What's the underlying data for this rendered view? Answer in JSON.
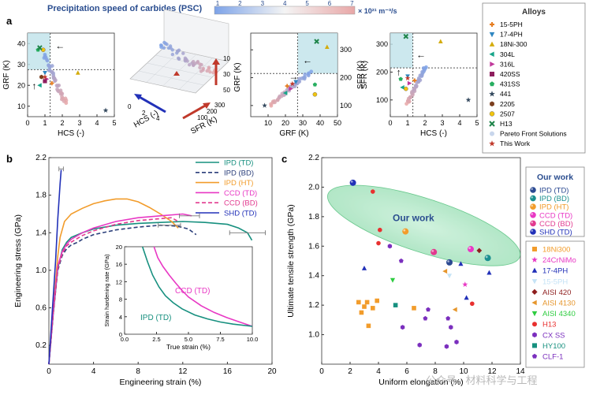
{
  "panel_labels": {
    "a": "a",
    "b": "b",
    "c": "c"
  },
  "colorbar": {
    "title": "Precipitation speed of carbides (PSC)",
    "unit": "× 10²¹ m⁻³/s",
    "ticks": [
      "1",
      "2",
      "3",
      "4",
      "5",
      "6",
      "7"
    ],
    "colors": [
      "#7da3e8",
      "#e8a7a7"
    ]
  },
  "legend_a": {
    "title": "Alloys",
    "items": [
      {
        "label": "15-5PH",
        "marker": "plus",
        "color": "#e67e22"
      },
      {
        "label": "17-4PH",
        "marker": "tri-down",
        "color": "#2e86c1"
      },
      {
        "label": "18Ni-300",
        "marker": "tri-up",
        "color": "#d4ac0d"
      },
      {
        "label": "304L",
        "marker": "tri-left",
        "color": "#17a589"
      },
      {
        "label": "316L",
        "marker": "tri-right",
        "color": "#c0399b"
      },
      {
        "label": "420SS",
        "marker": "square",
        "color": "#8e1e5e"
      },
      {
        "label": "431SS",
        "marker": "pentagon",
        "color": "#27ae60"
      },
      {
        "label": "441",
        "marker": "star",
        "color": "#34495e"
      },
      {
        "label": "2205",
        "marker": "hexagon",
        "color": "#7b3f1e"
      },
      {
        "label": "2507",
        "marker": "circle",
        "color": "#f1c40f"
      },
      {
        "label": "H13",
        "marker": "x",
        "color": "#1e8449"
      },
      {
        "label": "Pareto Front Solutions",
        "marker": "dot",
        "color": "#c8d6ec"
      },
      {
        "label": "This Work",
        "marker": "star",
        "color": "#c0392b"
      }
    ]
  },
  "chart_data": [
    {
      "id": "a1",
      "type": "scatter",
      "xlabel": "HCS (-)",
      "ylabel": "GRF (K)",
      "xticks": [
        "0",
        "1",
        "2",
        "3",
        "4",
        "5"
      ],
      "yticks": [
        "10",
        "20",
        "30",
        "40"
      ],
      "xlim": [
        0,
        5
      ],
      "ylim": [
        5,
        45
      ]
    },
    {
      "id": "a2",
      "type": "scatter-3d",
      "xlabel": "HCS (-)",
      "ylabel": "SFR (K)",
      "zlabel": "GRF (K)",
      "xticks": [
        "0",
        "2",
        "4"
      ],
      "yticks": [
        "100",
        "200",
        "300"
      ],
      "zticks": [
        "10",
        "30",
        "50"
      ]
    },
    {
      "id": "a3",
      "type": "scatter",
      "xlabel": "GRF (K)",
      "ylabel": "SFR (K)",
      "xticks": [
        "10",
        "20",
        "30",
        "40",
        "50"
      ],
      "yticks": [
        "100",
        "200",
        "300"
      ],
      "xlim": [
        0,
        50
      ],
      "ylim": [
        60,
        360
      ]
    },
    {
      "id": "a4",
      "type": "scatter",
      "xlabel": "HCS (-)",
      "ylabel": "SFR (K)",
      "xticks": [
        "0",
        "1",
        "2",
        "3",
        "4",
        "5"
      ],
      "yticks": [
        "100",
        "200",
        "300"
      ],
      "xlim": [
        0,
        5
      ],
      "ylim": [
        40,
        340
      ]
    },
    {
      "id": "b",
      "type": "line",
      "xlabel": "Engineering strain (%)",
      "ylabel": "Engineering stress (GPa)",
      "xlim": [
        0,
        20
      ],
      "ylim": [
        0,
        2.2
      ],
      "xticks": [
        "0",
        "4",
        "8",
        "12",
        "16",
        "20"
      ],
      "yticks": [
        "0.2",
        "0.6",
        "1.0",
        "1.4",
        "1.8",
        "2.2"
      ],
      "series": [
        {
          "name": "IPD (TD)",
          "color": "#17907f",
          "dash": "solid",
          "x": [
            0,
            0.4,
            0.8,
            1.2,
            1.6,
            2.0,
            3,
            4,
            6,
            8,
            10,
            12,
            14,
            16,
            17,
            17.8,
            18.2
          ],
          "y": [
            0,
            0.55,
            1.02,
            1.22,
            1.3,
            1.35,
            1.4,
            1.44,
            1.48,
            1.5,
            1.51,
            1.52,
            1.51,
            1.49,
            1.45,
            1.4,
            1.32
          ]
        },
        {
          "name": "IPD (BD)",
          "color": "#2b3f7a",
          "dash": "dashed",
          "x": [
            0,
            0.4,
            0.8,
            1.2,
            1.6,
            2.0,
            2.6,
            3,
            4,
            6,
            8,
            9,
            10,
            11.5,
            12.5,
            13.2
          ],
          "y": [
            0,
            0.55,
            1.0,
            1.16,
            1.23,
            1.27,
            1.3,
            1.33,
            1.38,
            1.43,
            1.46,
            1.47,
            1.48,
            1.47,
            1.44,
            1.38
          ]
        },
        {
          "name": "IPD (HT)",
          "color": "#f29c2b",
          "dash": "solid",
          "x": [
            0,
            0.4,
            0.8,
            1.0,
            1.4,
            2,
            3,
            4,
            5,
            6,
            7,
            8,
            9,
            10,
            11,
            11.6
          ],
          "y": [
            0,
            0.6,
            1.15,
            1.35,
            1.52,
            1.6,
            1.66,
            1.71,
            1.74,
            1.76,
            1.76,
            1.73,
            1.67,
            1.6,
            1.52,
            1.45
          ]
        },
        {
          "name": "CCD (TD)",
          "color": "#e838c4",
          "dash": "solid",
          "x": [
            0,
            0.4,
            0.8,
            1.2,
            1.6,
            2.0,
            3,
            4,
            6,
            8,
            10,
            12,
            12.8
          ],
          "y": [
            0,
            0.58,
            1.05,
            1.2,
            1.28,
            1.33,
            1.4,
            1.45,
            1.52,
            1.56,
            1.58,
            1.6,
            1.58
          ]
        },
        {
          "name": "CCD (BD)",
          "color": "#e23a8f",
          "dash": "dashed",
          "x": [
            0,
            0.4,
            0.8,
            1.2,
            1.6,
            2.0,
            3,
            4,
            6,
            8,
            10,
            11,
            11.6
          ],
          "y": [
            0,
            0.56,
            1.02,
            1.18,
            1.26,
            1.3,
            1.37,
            1.42,
            1.49,
            1.53,
            1.55,
            1.56,
            1.52
          ]
        },
        {
          "name": "SHD (TD)",
          "color": "#2231b8",
          "dash": "solid",
          "x": [
            0,
            0.3,
            0.6,
            0.8,
            1.0,
            1.1
          ],
          "y": [
            0,
            0.55,
            1.1,
            1.55,
            1.92,
            2.07
          ]
        }
      ],
      "error_bars": [
        {
          "x": 1.1,
          "y": 2.08,
          "err": 0.2,
          "color": "#2231b8"
        },
        {
          "x": 17.8,
          "y": 1.4,
          "err": 1.6,
          "color": "#17907f"
        },
        {
          "x": 12.6,
          "y": 1.58,
          "err": 0.9,
          "color": "#e838c4"
        },
        {
          "x": 10.8,
          "y": 1.48,
          "err": 1.0,
          "color": "#2b3f7a"
        }
      ],
      "inset": {
        "xlabel": "True strain (%)",
        "ylabel": "Strain hardening rate (GPa)",
        "xlim": [
          0,
          10
        ],
        "ylim": [
          0,
          20
        ],
        "xticks": [
          "0.0",
          "2.5",
          "5.0",
          "7.5",
          "10.0"
        ],
        "yticks": [
          "0",
          "4",
          "8",
          "12",
          "16",
          "20"
        ],
        "series": [
          {
            "name": "CCD (TD)",
            "color": "#e838c4",
            "x": [
              2.3,
              2.6,
              3,
              3.5,
              4,
              4.5,
              5,
              6,
              7,
              8,
              9,
              10
            ],
            "y": [
              20,
              17.5,
              15.5,
              13.5,
              11.7,
              10.0,
              8.5,
              6.5,
              5.0,
              3.8,
              2.8,
              1.8
            ]
          },
          {
            "name": "IPD (TD)",
            "color": "#17907f",
            "x": [
              1.4,
              1.8,
              2.2,
              2.7,
              3.2,
              3.8,
              4.5,
              5.5,
              6.5,
              7.5,
              8.5,
              10
            ],
            "y": [
              20,
              16.5,
              13.5,
              10.8,
              8.8,
              7.2,
              5.8,
              4.4,
              3.5,
              2.8,
              2.3,
              1.8
            ]
          }
        ]
      }
    },
    {
      "id": "c",
      "type": "scatter",
      "xlabel": "Uniform elongation (%)",
      "ylabel": "Ultimate tensile strength (GPa)",
      "xlim": [
        0,
        14
      ],
      "ylim": [
        0.8,
        2.2
      ],
      "xticks": [
        "0",
        "2",
        "4",
        "6",
        "8",
        "10",
        "12",
        "14"
      ],
      "yticks": [
        "1.0",
        "1.2",
        "1.4",
        "1.6",
        "1.8",
        "2.0",
        "2.2"
      ],
      "annotation": "Our work",
      "series": [
        {
          "name": "IPD (TD)",
          "group": "our",
          "marker": "ball",
          "color": "#2c4a92",
          "x": [
            9.0
          ],
          "y": [
            1.49
          ]
        },
        {
          "name": "IPD (BD)",
          "group": "our",
          "marker": "ball",
          "color": "#1a8f8f",
          "x": [
            11.7
          ],
          "y": [
            1.52
          ]
        },
        {
          "name": "IPD (HT)",
          "group": "our",
          "marker": "ball",
          "color": "#f29c2b",
          "x": [
            5.9
          ],
          "y": [
            1.7
          ]
        },
        {
          "name": "CCD (TD)",
          "group": "our",
          "marker": "ball",
          "color": "#e838c4",
          "x": [
            10.5
          ],
          "y": [
            1.58
          ]
        },
        {
          "name": "CCD (BD)",
          "group": "our",
          "marker": "ball",
          "color": "#e23a8f",
          "x": [
            7.9
          ],
          "y": [
            1.56
          ]
        },
        {
          "name": "SHD (TD)",
          "group": "our",
          "marker": "ball",
          "color": "#2231b8",
          "x": [
            2.2
          ],
          "y": [
            2.03
          ]
        },
        {
          "name": "18Ni300",
          "group": "ref",
          "marker": "square",
          "color": "#f29c2b",
          "x": [
            2.6,
            3.0,
            3.2,
            3.6,
            3.9,
            2.8,
            3.3,
            6.5
          ],
          "y": [
            1.22,
            1.19,
            1.22,
            1.18,
            1.23,
            1.15,
            1.06,
            1.18
          ]
        },
        {
          "name": "24CrNiMo",
          "group": "ref",
          "marker": "star",
          "color": "#e838c4",
          "x": [
            10.1
          ],
          "y": [
            1.34
          ]
        },
        {
          "name": "17-4PH",
          "group": "ref",
          "marker": "tri-up",
          "color": "#2231b8",
          "x": [
            3.0,
            9.8,
            10.2,
            11.8
          ],
          "y": [
            1.45,
            1.48,
            1.25,
            1.42
          ]
        },
        {
          "name": "15-5PH",
          "group": "ref",
          "marker": "tri-down",
          "color": "#c5e3f6",
          "x": [
            9.0
          ],
          "y": [
            1.4
          ]
        },
        {
          "name": "AISI 420",
          "group": "ref",
          "marker": "diamond",
          "color": "#8e1e1e",
          "x": [
            11.1
          ],
          "y": [
            1.57
          ]
        },
        {
          "name": "AISI 4130",
          "group": "ref",
          "marker": "tri-left",
          "color": "#e6962c",
          "x": [
            8.7,
            9.4
          ],
          "y": [
            1.43,
            1.17
          ]
        },
        {
          "name": "AISI 4340",
          "group": "ref",
          "marker": "tri-down",
          "color": "#2ecc40",
          "x": [
            5.0
          ],
          "y": [
            1.37
          ]
        },
        {
          "name": "H13",
          "group": "ref",
          "marker": "dot",
          "color": "#e8302f",
          "x": [
            3.6,
            4.1,
            4.0,
            10.6
          ],
          "y": [
            1.97,
            1.71,
            1.62,
            1.21
          ]
        },
        {
          "name": "CX SS",
          "group": "ref",
          "marker": "hexagon",
          "color": "#7b2fbe",
          "x": [
            5.7,
            6.9,
            8.8,
            9.5,
            9.1,
            4.8
          ],
          "y": [
            1.05,
            0.93,
            0.92,
            0.95,
            1.05,
            1.6
          ]
        },
        {
          "name": "HY100",
          "group": "ref",
          "marker": "square",
          "color": "#17907f",
          "x": [
            5.2
          ],
          "y": [
            1.2
          ]
        },
        {
          "name": "CLF-1",
          "group": "ref",
          "marker": "pentagon",
          "color": "#7b2fbe",
          "x": [
            5.6,
            7.3,
            8.9,
            7.5
          ],
          "y": [
            1.5,
            1.11,
            1.11,
            1.17
          ]
        }
      ]
    }
  ],
  "legend_b": [
    "IPD (TD)",
    "IPD (BD)",
    "IPD (HT)",
    "CCD (TD)",
    "CCD (BD)",
    "SHD (TD)"
  ],
  "inset_labels": {
    "ccd": "CCD (TD)",
    "ipd": "IPD (TD)"
  },
  "legend_c": {
    "title": "Our work",
    "our": [
      "IPD (TD)",
      "IPD (BD)",
      "IPD (HT)",
      "CCD (TD)",
      "CCD (BD)",
      "SHD (TD)"
    ],
    "ref": [
      "18Ni300",
      "24CrNiMo",
      "17-4PH",
      "15-5PH",
      "AISI 420",
      "AISI 4130",
      "AISI 4340",
      "H13",
      "CX SS",
      "HY100",
      "CLF-1"
    ]
  },
  "watermark": "公众号 · 材料科学与工程"
}
